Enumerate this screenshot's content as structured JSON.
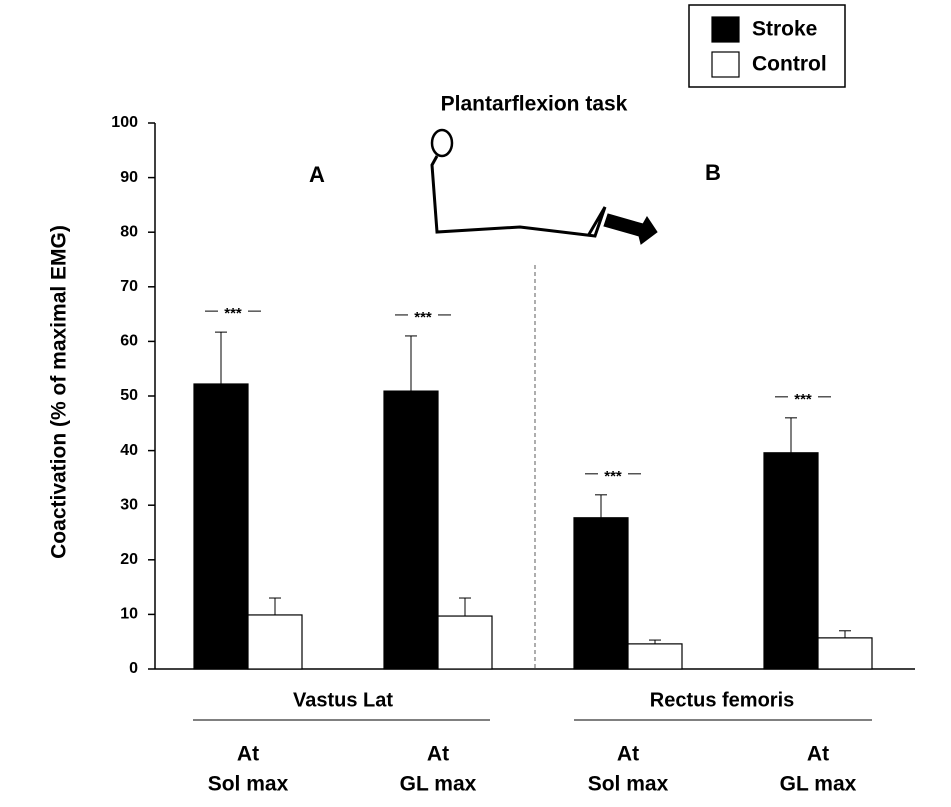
{
  "chart_data": {
    "type": "bar",
    "y_label": "Coactivation (% of maximal EMG)",
    "illustration_title": "Plantarflexion task",
    "panels": [
      "A",
      "B"
    ],
    "groups": [
      "Vastus Lat",
      "Rectus femoris"
    ],
    "categories": [
      [
        "At",
        "Sol max"
      ],
      [
        "At",
        "GL max"
      ],
      [
        "At",
        "Sol max"
      ],
      [
        "At",
        "GL max"
      ]
    ],
    "series": [
      {
        "name": "Stroke",
        "color": "#000000",
        "values": [
          52.2,
          50.9,
          27.7,
          39.6
        ],
        "errors": [
          9.5,
          10.1,
          4.2,
          6.4
        ]
      },
      {
        "name": "Control",
        "color": "#ffffff",
        "values": [
          9.9,
          9.7,
          4.6,
          5.7
        ],
        "errors": [
          3.1,
          3.3,
          0.7,
          1.3
        ]
      }
    ],
    "significance": [
      "***",
      "***",
      "***",
      "***"
    ],
    "ylim": [
      0,
      100
    ],
    "yticks": [
      0,
      10,
      20,
      30,
      40,
      50,
      60,
      70,
      80,
      90,
      100
    ],
    "grid": false,
    "legend": "top-right"
  }
}
